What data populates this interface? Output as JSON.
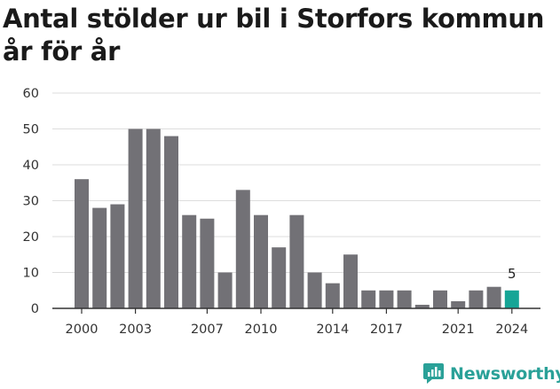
{
  "chart_data": {
    "type": "bar",
    "title": "Antal stölder ur bil i Storfors kommun år för år",
    "categories": [
      "2000",
      "2001",
      "2002",
      "2003",
      "2004",
      "2005",
      "2006",
      "2007",
      "2008",
      "2009",
      "2010",
      "2011",
      "2012",
      "2013",
      "2014",
      "2015",
      "2016",
      "2017",
      "2018",
      "2019",
      "2020",
      "2021",
      "2022",
      "2023",
      "2024"
    ],
    "values": [
      36,
      28,
      29,
      50,
      50,
      48,
      26,
      25,
      10,
      33,
      26,
      17,
      26,
      10,
      7,
      15,
      5,
      5,
      5,
      1,
      5,
      2,
      5,
      6,
      5
    ],
    "x_tick_labels": [
      "2000",
      "2003",
      "2007",
      "2010",
      "2014",
      "2017",
      "2021",
      "2024"
    ],
    "y_ticks": [
      0,
      10,
      20,
      30,
      40,
      50,
      60
    ],
    "ylim": [
      0,
      60
    ],
    "highlight": {
      "category": "2024",
      "label": "5"
    },
    "colors": {
      "bar": "#727176",
      "highlight": "#16a596",
      "grid": "#dddddd"
    },
    "grid": true
  },
  "branding": {
    "name": "Newsworthy",
    "icon": "newsworthy-logo-icon",
    "color": "#2aa198"
  }
}
